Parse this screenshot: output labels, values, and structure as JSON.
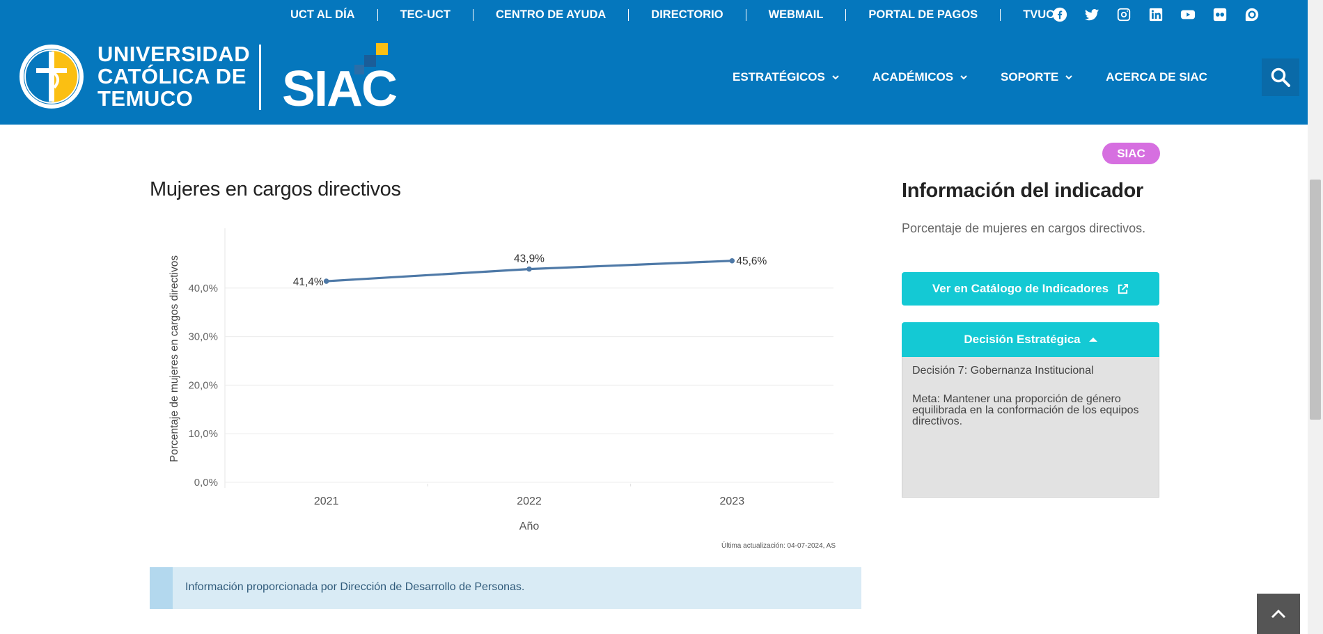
{
  "topnav": {
    "items": [
      "UCT AL DÍA",
      "TEC-UCT",
      "CENTRO DE AYUDA",
      "DIRECTORIO",
      "WEBMAIL",
      "PORTAL DE PAGOS",
      "TVUCT"
    ],
    "social": [
      "facebook-icon",
      "twitter-icon",
      "instagram-icon",
      "linkedin-icon",
      "youtube-icon",
      "flickr-icon",
      "issuu-icon"
    ]
  },
  "header": {
    "university_line1": "UNIVERSIDAD",
    "university_line2": "CATÓLICA DE",
    "university_line3": "TEMUCO",
    "brand": "SIAC",
    "menu": [
      "ESTRATÉGICOS",
      "ACADÉMICOS",
      "SOPORTE",
      "ACERCA DE SIAC"
    ]
  },
  "badge": "SIAC",
  "main": {
    "title": "Mujeres en cargos directivos",
    "updated": "Última actualización: 04-07-2024, AS",
    "info": "Información proporcionada por Dirección de Desarrollo de Personas."
  },
  "side": {
    "title": "Información del indicador",
    "description": "Porcentaje de mujeres en cargos directivos.",
    "catalog_button": "Ver en Catálogo de Indicadores",
    "accordion_title": "Decisión Estratégica",
    "decision": "Decisión 7: Gobernanza Institucional",
    "goal": "Meta: Mantener una proporción de género equilibrada en la conformación de los equipos directivos."
  },
  "colors": {
    "brand_blue": "#0577bd",
    "accent_cyan": "#14c9d4",
    "badge_pink": "#d66fe0",
    "line": "#4e79a7"
  },
  "chart_data": {
    "type": "line",
    "x": [
      "2021",
      "2022",
      "2023"
    ],
    "values": [
      41.4,
      43.9,
      45.6
    ],
    "data_labels": [
      "41,4%",
      "43,9%",
      "45,6%"
    ],
    "xlabel": "Año",
    "ylabel": "Porcentaje de mujeres en cargos directivos",
    "yticks": [
      "0,0%",
      "10,0%",
      "20,0%",
      "30,0%",
      "40,0%"
    ],
    "ylim": [
      0,
      48
    ],
    "grid": true
  }
}
